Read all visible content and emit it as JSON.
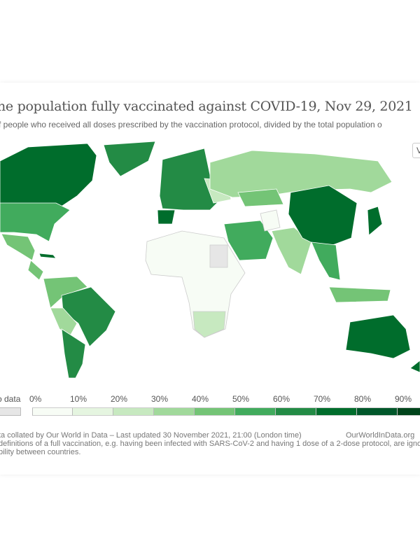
{
  "header": {
    "title": "he population fully vaccinated against COVID-19, Nov 29, 2021",
    "subtitle": "f people who received all doses prescribed by the vaccination protocol, divided by the total population o",
    "view_button_label": "V"
  },
  "legend": {
    "no_data_label": "o data",
    "no_data_color": "#e6e6e6",
    "bins": [
      {
        "label": "0%",
        "color": "#f7fcf5"
      },
      {
        "label": "10%",
        "color": "#e5f5e0"
      },
      {
        "label": "20%",
        "color": "#c7e9c0"
      },
      {
        "label": "30%",
        "color": "#a1d99b"
      },
      {
        "label": "40%",
        "color": "#74c476"
      },
      {
        "label": "50%",
        "color": "#41ab5d"
      },
      {
        "label": "60%",
        "color": "#238b45"
      },
      {
        "label": "70%",
        "color": "#006d2c"
      },
      {
        "label": "80%",
        "color": "#00572a"
      },
      {
        "label": "90%",
        "color": "#00441b"
      }
    ]
  },
  "footer": {
    "source": "ta collated by Our World in Data – Last updated 30 November 2021, 21:00 (London time)",
    "brand": "OurWorldInData.org",
    "note_line1": "definitions of a full vaccination, e.g. having been infected with SARS-CoV-2 and having 1 dose of a 2-dose protocol, are igno",
    "note_line2": "bility between countries."
  }
}
